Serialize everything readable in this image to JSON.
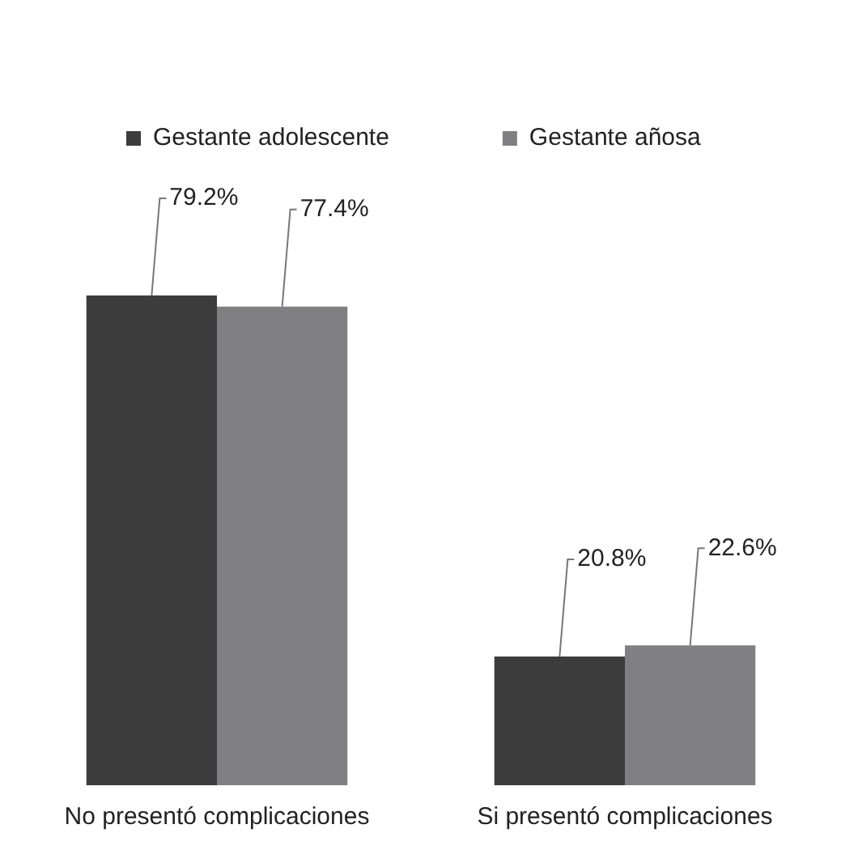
{
  "chart_data": {
    "type": "bar",
    "categories": [
      "No presentó complicaciones",
      "Si presentó complicaciones"
    ],
    "series": [
      {
        "name": "Gestante adolescente",
        "color": "#3c3c3c",
        "values": [
          79.2,
          20.8
        ],
        "value_labels": [
          "79.2%",
          "20.8%"
        ]
      },
      {
        "name": "Gestante añosa",
        "color": "#808083",
        "values": [
          77.4,
          22.6
        ],
        "value_labels": [
          "77.4%",
          "22.6%"
        ]
      }
    ],
    "legend": "top left",
    "grid": false
  }
}
